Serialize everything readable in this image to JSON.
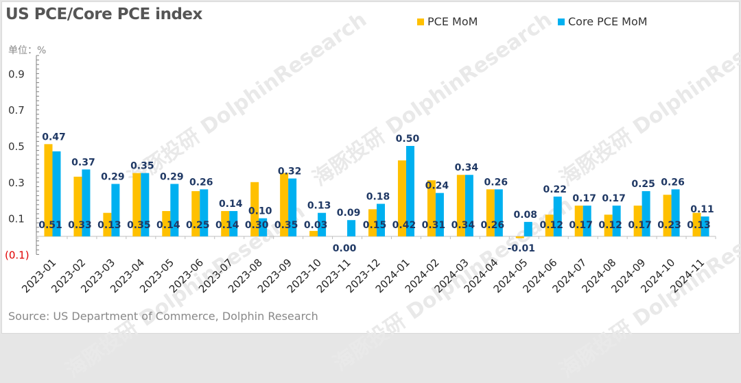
{
  "title": "US PCE/Core PCE index",
  "unit_label": "单位：%",
  "source": "Source: US Department of Commerce, Dolphin Research",
  "watermark": "海豚投研 DolphinResearch",
  "colors": {
    "pce": "#FFC000",
    "core": "#00B0F0",
    "label": "#1F3864",
    "neg_tick": "#E00000",
    "axis": "#7f7f7f"
  },
  "chart_data": {
    "type": "bar",
    "title": "US PCE/Core PCE index",
    "xlabel": "",
    "ylabel": "单位：%",
    "ylim": [
      -0.1,
      1.0
    ],
    "yticks": [
      0.9,
      0.7,
      0.5,
      0.3,
      0.1,
      -0.1
    ],
    "ytick_labels": [
      "0.9",
      "0.7",
      "0.5",
      "0.3",
      "0.1",
      "(0.1)"
    ],
    "legend": "top-right",
    "grid": false,
    "categories": [
      "2023-01",
      "2023-02",
      "2023-03",
      "2023-04",
      "2023-05",
      "2023-06",
      "2023-07",
      "2023-08",
      "2023-09",
      "2023-10",
      "2023-11",
      "2023-12",
      "2024-01",
      "2024-02",
      "2024-03",
      "2024-04",
      "2024-05",
      "2024-06",
      "2024-07",
      "2024-08",
      "2024-09",
      "2024-10",
      "2024-11"
    ],
    "series": [
      {
        "name": "PCE MoM",
        "values": [
          0.51,
          0.33,
          0.13,
          0.35,
          0.14,
          0.25,
          0.14,
          0.3,
          0.35,
          0.03,
          0.0,
          0.15,
          0.42,
          0.31,
          0.34,
          0.26,
          -0.01,
          0.12,
          0.17,
          0.12,
          0.17,
          0.23,
          0.13
        ]
      },
      {
        "name": "Core PCE MoM",
        "values": [
          0.47,
          0.37,
          0.29,
          0.35,
          0.29,
          0.26,
          0.14,
          0.1,
          0.32,
          0.13,
          0.09,
          0.18,
          0.5,
          0.24,
          0.34,
          0.26,
          0.08,
          0.22,
          0.17,
          0.17,
          0.25,
          0.26,
          0.11
        ]
      }
    ]
  }
}
